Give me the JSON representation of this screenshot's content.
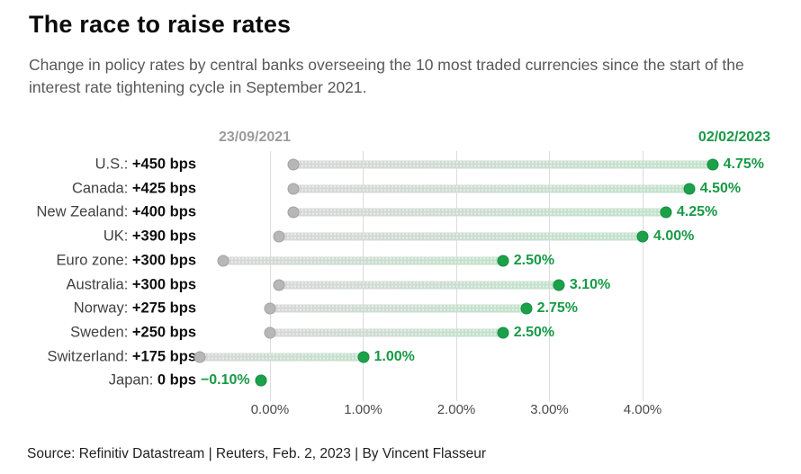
{
  "header": {
    "title": "The race to raise rates",
    "subtitle": "Change in policy rates by central banks overseeing the 10 most traded currencies since the start of the interest rate tightening cycle in September 2021."
  },
  "chart_data": {
    "type": "dumbbell",
    "title": "The race to raise rates",
    "start_date_label": "23/09/2021",
    "end_date_label": "02/02/2023",
    "x_ticks": [
      {
        "label": "0.00%",
        "value": 0
      },
      {
        "label": "1.00%",
        "value": 1
      },
      {
        "label": "2.00%",
        "value": 2
      },
      {
        "label": "3.00%",
        "value": 3
      },
      {
        "label": "4.00%",
        "value": 4
      }
    ],
    "xlim": [
      -0.85,
      4.95
    ],
    "grid": true,
    "series": [
      {
        "label": "U.S.:",
        "change": "+450 bps",
        "start": 0.25,
        "end": 4.75,
        "end_label": "4.75%"
      },
      {
        "label": "Canada:",
        "change": "+425 bps",
        "start": 0.25,
        "end": 4.5,
        "end_label": "4.50%"
      },
      {
        "label": "New Zealand:",
        "change": "+400 bps",
        "start": 0.25,
        "end": 4.25,
        "end_label": "4.25%"
      },
      {
        "label": "UK:",
        "change": "+390 bps",
        "start": 0.1,
        "end": 4.0,
        "end_label": "4.00%"
      },
      {
        "label": "Euro zone:",
        "change": "+300 bps",
        "start": -0.5,
        "end": 2.5,
        "end_label": "2.50%"
      },
      {
        "label": "Australia:",
        "change": "+300 bps",
        "start": 0.1,
        "end": 3.1,
        "end_label": "3.10%"
      },
      {
        "label": "Norway:",
        "change": "+275 bps",
        "start": 0.0,
        "end": 2.75,
        "end_label": "2.75%"
      },
      {
        "label": "Sweden:",
        "change": "+250 bps",
        "start": 0.0,
        "end": 2.5,
        "end_label": "2.50%"
      },
      {
        "label": "Switzerland:",
        "change": "+175 bps",
        "start": -0.75,
        "end": 1.0,
        "end_label": "1.00%"
      },
      {
        "label": "Japan:",
        "change": "0 bps",
        "start": -0.1,
        "end": -0.1,
        "end_label": "−0.10%",
        "value_side": "left"
      }
    ],
    "colors": {
      "green": "#1aa14a",
      "green_text": "#189a46",
      "gray_dot": "#b7b7b7",
      "grid": "#dcdcdc",
      "start_date": "#9b9b9b"
    }
  },
  "footer": {
    "source": "Source: Refinitiv Datastream | Reuters, Feb. 2, 2023 | By Vincent Flasseur"
  }
}
